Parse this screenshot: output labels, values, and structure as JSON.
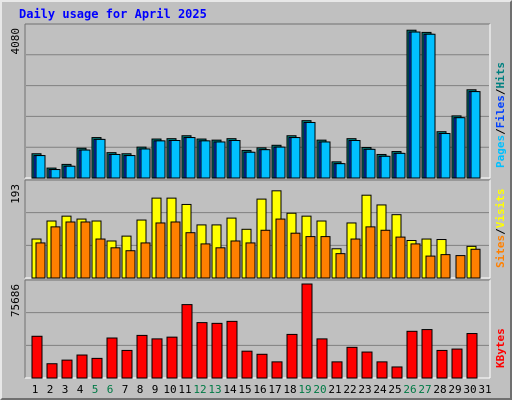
{
  "chart_data": {
    "type": "bar",
    "title": "Daily usage for April 2025",
    "categories": [
      "1",
      "2",
      "3",
      "4",
      "5",
      "6",
      "7",
      "8",
      "9",
      "10",
      "11",
      "12",
      "13",
      "14",
      "15",
      "16",
      "17",
      "18",
      "19",
      "20",
      "21",
      "22",
      "23",
      "24",
      "25",
      "26",
      "27",
      "28",
      "29",
      "30",
      "31"
    ],
    "weekend_days": [
      5,
      6,
      12,
      13,
      19,
      20,
      26,
      27
    ],
    "panels": [
      {
        "id": "hits-panel",
        "max_label": "4080",
        "ymax": 4080,
        "ylabels": [
          {
            "text": "Pages",
            "color": "#00c0ff"
          },
          {
            "text": "/",
            "color": "#000000"
          },
          {
            "text": "Files",
            "color": "#0040ff"
          },
          {
            "text": "/",
            "color": "#000000"
          },
          {
            "text": "Hits",
            "color": "#008080"
          }
        ],
        "series": [
          {
            "name": "Hits",
            "color": "#008080",
            "values": [
              660,
              270,
              370,
              810,
              1100,
              690,
              660,
              840,
              1060,
              1070,
              1150,
              1060,
              1030,
              1070,
              750,
              820,
              890,
              1150,
              1560,
              1030,
              440,
              1070,
              830,
              640,
              720,
              4020,
              3960,
              1260,
              1690,
              2400,
              0
            ]
          },
          {
            "name": "Files",
            "color": "#0040ff",
            "values": [
              610,
              230,
              320,
              760,
              1050,
              640,
              610,
              790,
              1010,
              1020,
              1100,
              1010,
              980,
              1020,
              700,
              770,
              840,
              1100,
              1510,
              980,
              390,
              1020,
              780,
              590,
              670,
              3970,
              3910,
              1210,
              1640,
              2350,
              0
            ]
          },
          {
            "name": "Pages",
            "color": "#00c0ff",
            "values": [
              610,
              230,
              320,
              760,
              1050,
              640,
              610,
              790,
              1010,
              1020,
              1100,
              1010,
              980,
              1020,
              700,
              770,
              840,
              1100,
              1510,
              980,
              390,
              1020,
              780,
              590,
              670,
              3970,
              3910,
              1210,
              1640,
              2350,
              0
            ]
          }
        ]
      },
      {
        "id": "visits-panel",
        "max_label": "193",
        "ymax": 193,
        "ylabels": [
          {
            "text": "Sites",
            "color": "#ff8000"
          },
          {
            "text": "/",
            "color": "#000000"
          },
          {
            "text": "Visits",
            "color": "#ffff00"
          }
        ],
        "series": [
          {
            "name": "Visits",
            "color": "#ffff00",
            "values": [
              80,
              117,
              127,
              121,
              117,
              76,
              86,
              119,
              164,
              164,
              151,
              109,
              109,
              123,
              100,
              162,
              179,
              133,
              127,
              117,
              60,
              113,
              170,
              150,
              130,
              77,
              80,
              79,
              0,
              65,
              0
            ]
          },
          {
            "name": "Sites",
            "color": "#ff8000",
            "values": [
              72,
              105,
              115,
              115,
              80,
              62,
              56,
              72,
              113,
              115,
              93,
              70,
              62,
              76,
              72,
              98,
              121,
              92,
              85,
              85,
              50,
              80,
              105,
              98,
              84,
              70,
              45,
              48,
              46,
              59,
              0
            ]
          }
        ]
      },
      {
        "id": "kbytes-panel",
        "max_label": "75686",
        "ymax": 75686,
        "ylabels": [
          {
            "text": "KBytes",
            "color": "#ff0000"
          }
        ],
        "series": [
          {
            "name": "KBytes",
            "color": "#ff0000",
            "values": [
              33600,
              11500,
              14400,
              18500,
              15800,
              32200,
              22200,
              34300,
              31500,
              32900,
              59100,
              44600,
              44000,
              45600,
              21600,
              19100,
              13000,
              35100,
              75686,
              31500,
              13000,
              24700,
              20900,
              13000,
              8900,
              37600,
              39000,
              22200,
              23300,
              35800,
              0
            ]
          }
        ]
      }
    ]
  }
}
